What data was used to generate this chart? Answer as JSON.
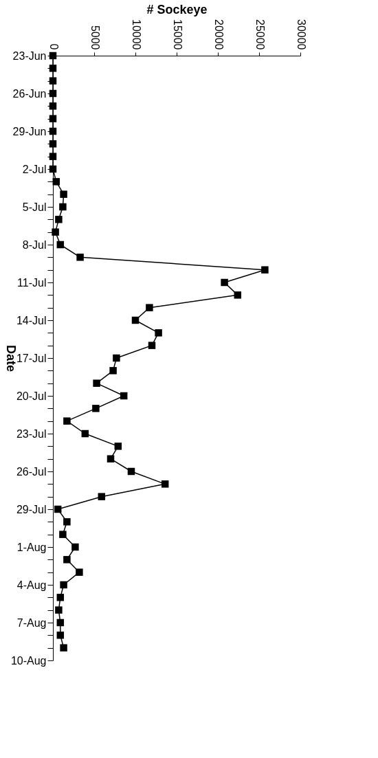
{
  "chart_data": {
    "type": "line",
    "orientation": "horizontal",
    "xlabel": "# Sockeye",
    "ylabel": "Date",
    "categories": [
      "23-Jun",
      null,
      null,
      "26-Jun",
      null,
      null,
      "29-Jun",
      null,
      null,
      "2-Jul",
      null,
      null,
      "5-Jul",
      null,
      null,
      "8-Jul",
      null,
      null,
      "11-Jul",
      null,
      null,
      "14-Jul",
      null,
      null,
      "17-Jul",
      null,
      null,
      "20-Jul",
      null,
      null,
      "23-Jul",
      null,
      null,
      "26-Jul",
      null,
      null,
      "29-Jul",
      null,
      null,
      "1-Aug",
      null,
      null,
      "4-Aug",
      null,
      null,
      "7-Aug",
      null,
      null,
      "10-Aug"
    ],
    "series": [
      {
        "color": "#000000",
        "values": [
          0,
          0,
          0,
          0,
          0,
          0,
          0,
          0,
          0,
          0,
          400,
          1300,
          1200,
          700,
          300,
          900,
          3300,
          25700,
          20800,
          22400,
          11700,
          10000,
          12800,
          12000,
          7700,
          7300,
          5300,
          8600,
          5200,
          1700,
          3900,
          7900,
          7000,
          9500,
          13600,
          5900,
          600,
          1700,
          1200,
          2700,
          1700,
          3200,
          1300,
          900,
          700,
          900,
          900,
          1300,
          null
        ]
      }
    ],
    "xlim": [
      0,
      30000
    ],
    "xticks": [
      0,
      5000,
      10000,
      15000,
      20000,
      25000,
      30000
    ],
    "marker": "square",
    "line_style": "solid"
  }
}
